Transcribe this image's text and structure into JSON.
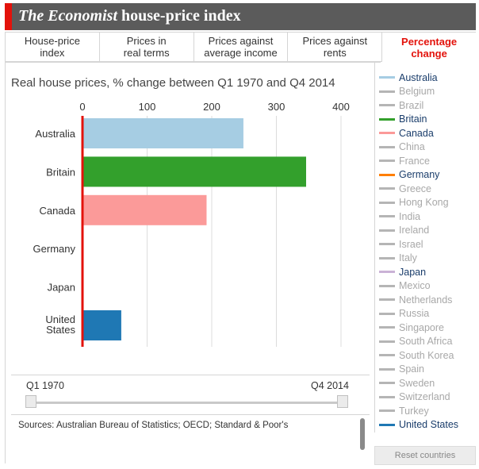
{
  "header": {
    "title_italic": "The Economist",
    "title_rest": " house-price index",
    "accent_color": "#e3120b"
  },
  "tabs": [
    {
      "label": "House-price\nindex",
      "active": false
    },
    {
      "label": "Prices in\nreal terms",
      "active": false
    },
    {
      "label": "Prices against\naverage income",
      "active": false
    },
    {
      "label": "Prices against\nrents",
      "active": false
    },
    {
      "label": "Percentage\nchange",
      "active": true
    }
  ],
  "chart_data": {
    "type": "bar",
    "orientation": "horizontal",
    "title": "Real house prices, % change between Q1 1970 and Q4 2014",
    "categories": [
      "Australia",
      "Britain",
      "Canada",
      "Germany",
      "Japan",
      "United States"
    ],
    "values": [
      249,
      346,
      192,
      null,
      null,
      60
    ],
    "colors": [
      "#a6cde3",
      "#33a02c",
      "#fb9a99",
      "#ff7f00",
      "#cab2d6",
      "#1f78b4"
    ],
    "xlim": [
      0,
      420
    ],
    "xticks": [
      0,
      100,
      200,
      300,
      400
    ],
    "grid": true,
    "zero_line_color": "#e3120b"
  },
  "legend": {
    "items": [
      {
        "name": "Australia",
        "color": "#a6cde3",
        "active": true
      },
      {
        "name": "Belgium",
        "color": "#b5b5b5",
        "active": false
      },
      {
        "name": "Brazil",
        "color": "#b5b5b5",
        "active": false
      },
      {
        "name": "Britain",
        "color": "#33a02c",
        "active": true
      },
      {
        "name": "Canada",
        "color": "#fb9a99",
        "active": true
      },
      {
        "name": "China",
        "color": "#b5b5b5",
        "active": false
      },
      {
        "name": "France",
        "color": "#b5b5b5",
        "active": false
      },
      {
        "name": "Germany",
        "color": "#ff7f00",
        "active": true
      },
      {
        "name": "Greece",
        "color": "#b5b5b5",
        "active": false
      },
      {
        "name": "Hong Kong",
        "color": "#b5b5b5",
        "active": false
      },
      {
        "name": "India",
        "color": "#b5b5b5",
        "active": false
      },
      {
        "name": "Ireland",
        "color": "#b5b5b5",
        "active": false
      },
      {
        "name": "Israel",
        "color": "#b5b5b5",
        "active": false
      },
      {
        "name": "Italy",
        "color": "#b5b5b5",
        "active": false
      },
      {
        "name": "Japan",
        "color": "#cab2d6",
        "active": true
      },
      {
        "name": "Mexico",
        "color": "#b5b5b5",
        "active": false
      },
      {
        "name": "Netherlands",
        "color": "#b5b5b5",
        "active": false
      },
      {
        "name": "Russia",
        "color": "#b5b5b5",
        "active": false
      },
      {
        "name": "Singapore",
        "color": "#b5b5b5",
        "active": false
      },
      {
        "name": "South Africa",
        "color": "#b5b5b5",
        "active": false
      },
      {
        "name": "South Korea",
        "color": "#b5b5b5",
        "active": false
      },
      {
        "name": "Spain",
        "color": "#b5b5b5",
        "active": false
      },
      {
        "name": "Sweden",
        "color": "#b5b5b5",
        "active": false
      },
      {
        "name": "Switzerland",
        "color": "#b5b5b5",
        "active": false
      },
      {
        "name": "Turkey",
        "color": "#b5b5b5",
        "active": false
      },
      {
        "name": "United States",
        "color": "#1f78b4",
        "active": true
      }
    ],
    "reset_label": "Reset countries"
  },
  "slider": {
    "start_label": "Q1 1970",
    "end_label": "Q4 2014"
  },
  "sources": "Sources: Australian Bureau of Statistics; OECD; Standard & Poor's"
}
